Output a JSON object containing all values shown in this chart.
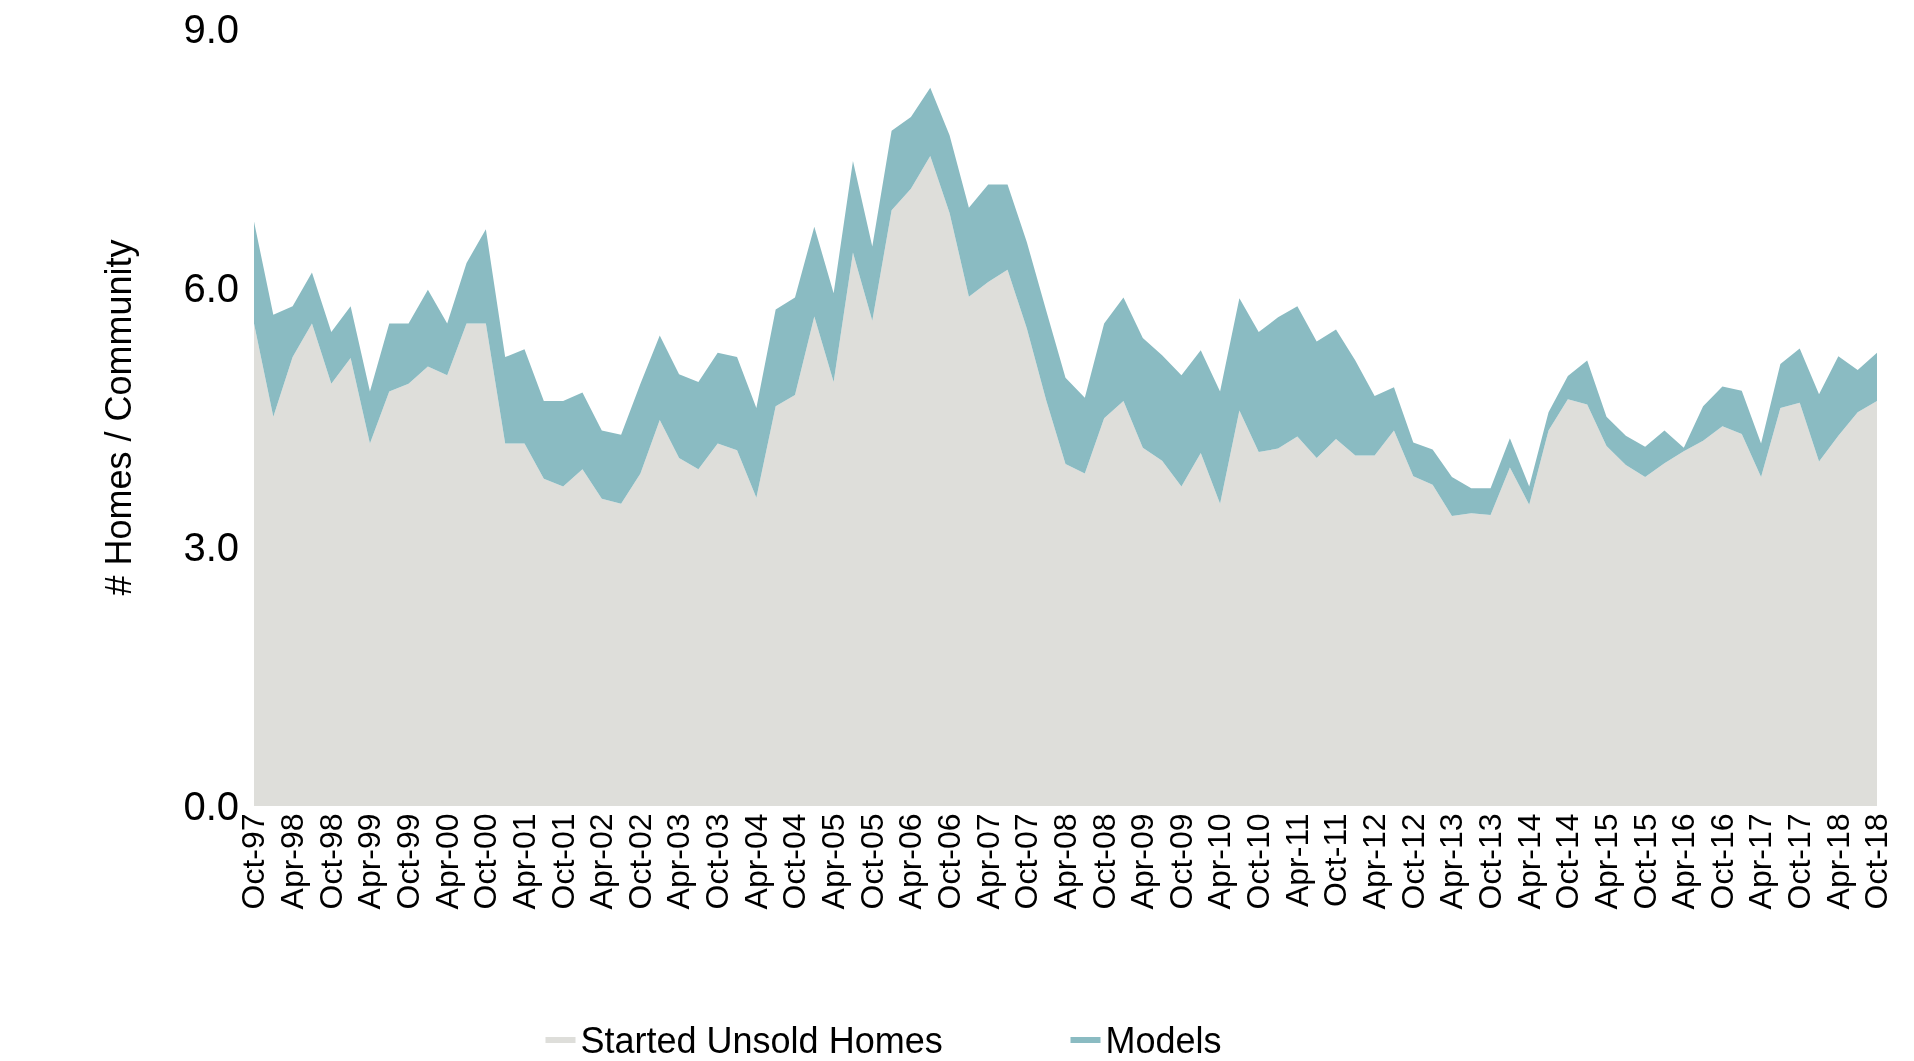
{
  "chart_data": {
    "type": "area",
    "stacked": true,
    "ylabel": "# Homes / Community",
    "categories": [
      "Oct-97",
      null,
      "Apr-98",
      null,
      "Oct-98",
      null,
      "Apr-99",
      null,
      "Oct-99",
      null,
      "Apr-00",
      null,
      "Oct-00",
      null,
      "Apr-01",
      null,
      "Oct-01",
      null,
      "Apr-02",
      null,
      "Oct-02",
      null,
      "Apr-03",
      null,
      "Oct-03",
      null,
      "Apr-04",
      null,
      "Oct-04",
      null,
      "Apr-05",
      null,
      "Oct-05",
      null,
      "Apr-06",
      null,
      "Oct-06",
      null,
      "Apr-07",
      null,
      "Oct-07",
      null,
      "Apr-08",
      null,
      "Oct-08",
      null,
      "Apr-09",
      null,
      "Oct-09",
      null,
      "Apr-10",
      null,
      "Oct-10",
      null,
      "Apr-11",
      null,
      "Oct-11",
      null,
      "Apr-12",
      null,
      "Oct-12",
      null,
      "Apr-13",
      null,
      "Oct-13",
      null,
      "Apr-14",
      null,
      "Oct-14",
      null,
      "Apr-15",
      null,
      "Oct-15",
      null,
      "Apr-16",
      null,
      "Oct-16",
      null,
      "Apr-17",
      null,
      "Oct-17",
      null,
      "Apr-18",
      null,
      "Oct-18"
    ],
    "series": [
      {
        "name": "Started Unsold Homes",
        "color": "#dededa",
        "values": [
          5.59,
          4.51,
          5.2,
          5.59,
          4.89,
          5.19,
          4.2,
          4.8,
          4.89,
          5.09,
          4.99,
          5.59,
          5.59,
          4.2,
          4.2,
          3.79,
          3.7,
          3.9,
          3.56,
          3.5,
          3.85,
          4.47,
          4.03,
          3.9,
          4.2,
          4.12,
          3.57,
          4.63,
          4.76,
          5.67,
          4.91,
          6.41,
          5.62,
          6.9,
          7.15,
          7.53,
          6.87,
          5.9,
          6.07,
          6.21,
          5.53,
          4.7,
          3.96,
          3.85,
          4.49,
          4.69,
          4.15,
          4.0,
          3.7,
          4.09,
          3.5,
          4.58,
          4.1,
          4.14,
          4.28,
          4.03,
          4.25,
          4.06,
          4.06,
          4.35,
          3.82,
          3.72,
          3.36,
          3.39,
          3.37,
          3.92,
          3.49,
          4.35,
          4.71,
          4.65,
          4.17,
          3.95,
          3.81,
          3.97,
          4.11,
          4.23,
          4.4,
          4.31,
          3.81,
          4.61,
          4.67,
          3.99,
          4.29,
          4.56,
          4.69
        ]
      },
      {
        "name": "Models",
        "color": "#8abbc2",
        "values": [
          1.18,
          1.18,
          0.59,
          0.59,
          0.6,
          0.6,
          0.6,
          0.79,
          0.7,
          0.89,
          0.6,
          0.7,
          1.09,
          1.0,
          1.09,
          0.9,
          0.99,
          0.89,
          0.79,
          0.8,
          1.04,
          0.98,
          0.97,
          1.01,
          1.05,
          1.08,
          1.04,
          1.12,
          1.13,
          1.04,
          1.03,
          1.06,
          0.86,
          0.92,
          0.83,
          0.79,
          0.9,
          1.03,
          1.13,
          0.99,
          1.0,
          1.04,
          1.0,
          0.88,
          1.1,
          1.2,
          1.27,
          1.22,
          1.29,
          1.19,
          1.3,
          1.3,
          1.39,
          1.52,
          1.51,
          1.35,
          1.27,
          1.1,
          0.69,
          0.5,
          0.39,
          0.41,
          0.45,
          0.29,
          0.31,
          0.34,
          0.21,
          0.21,
          0.27,
          0.51,
          0.34,
          0.34,
          0.35,
          0.38,
          0.04,
          0.4,
          0.46,
          0.5,
          0.39,
          0.51,
          0.63,
          0.78,
          0.92,
          0.49,
          0.56
        ]
      }
    ],
    "ylim": [
      0,
      9
    ],
    "yticks": [
      {
        "value": 0,
        "label": "0.0"
      },
      {
        "value": 3,
        "label": "3.0"
      },
      {
        "value": 6,
        "label": "6.0"
      },
      {
        "value": 9,
        "label": "9.0"
      }
    ],
    "legend": "bottom"
  }
}
